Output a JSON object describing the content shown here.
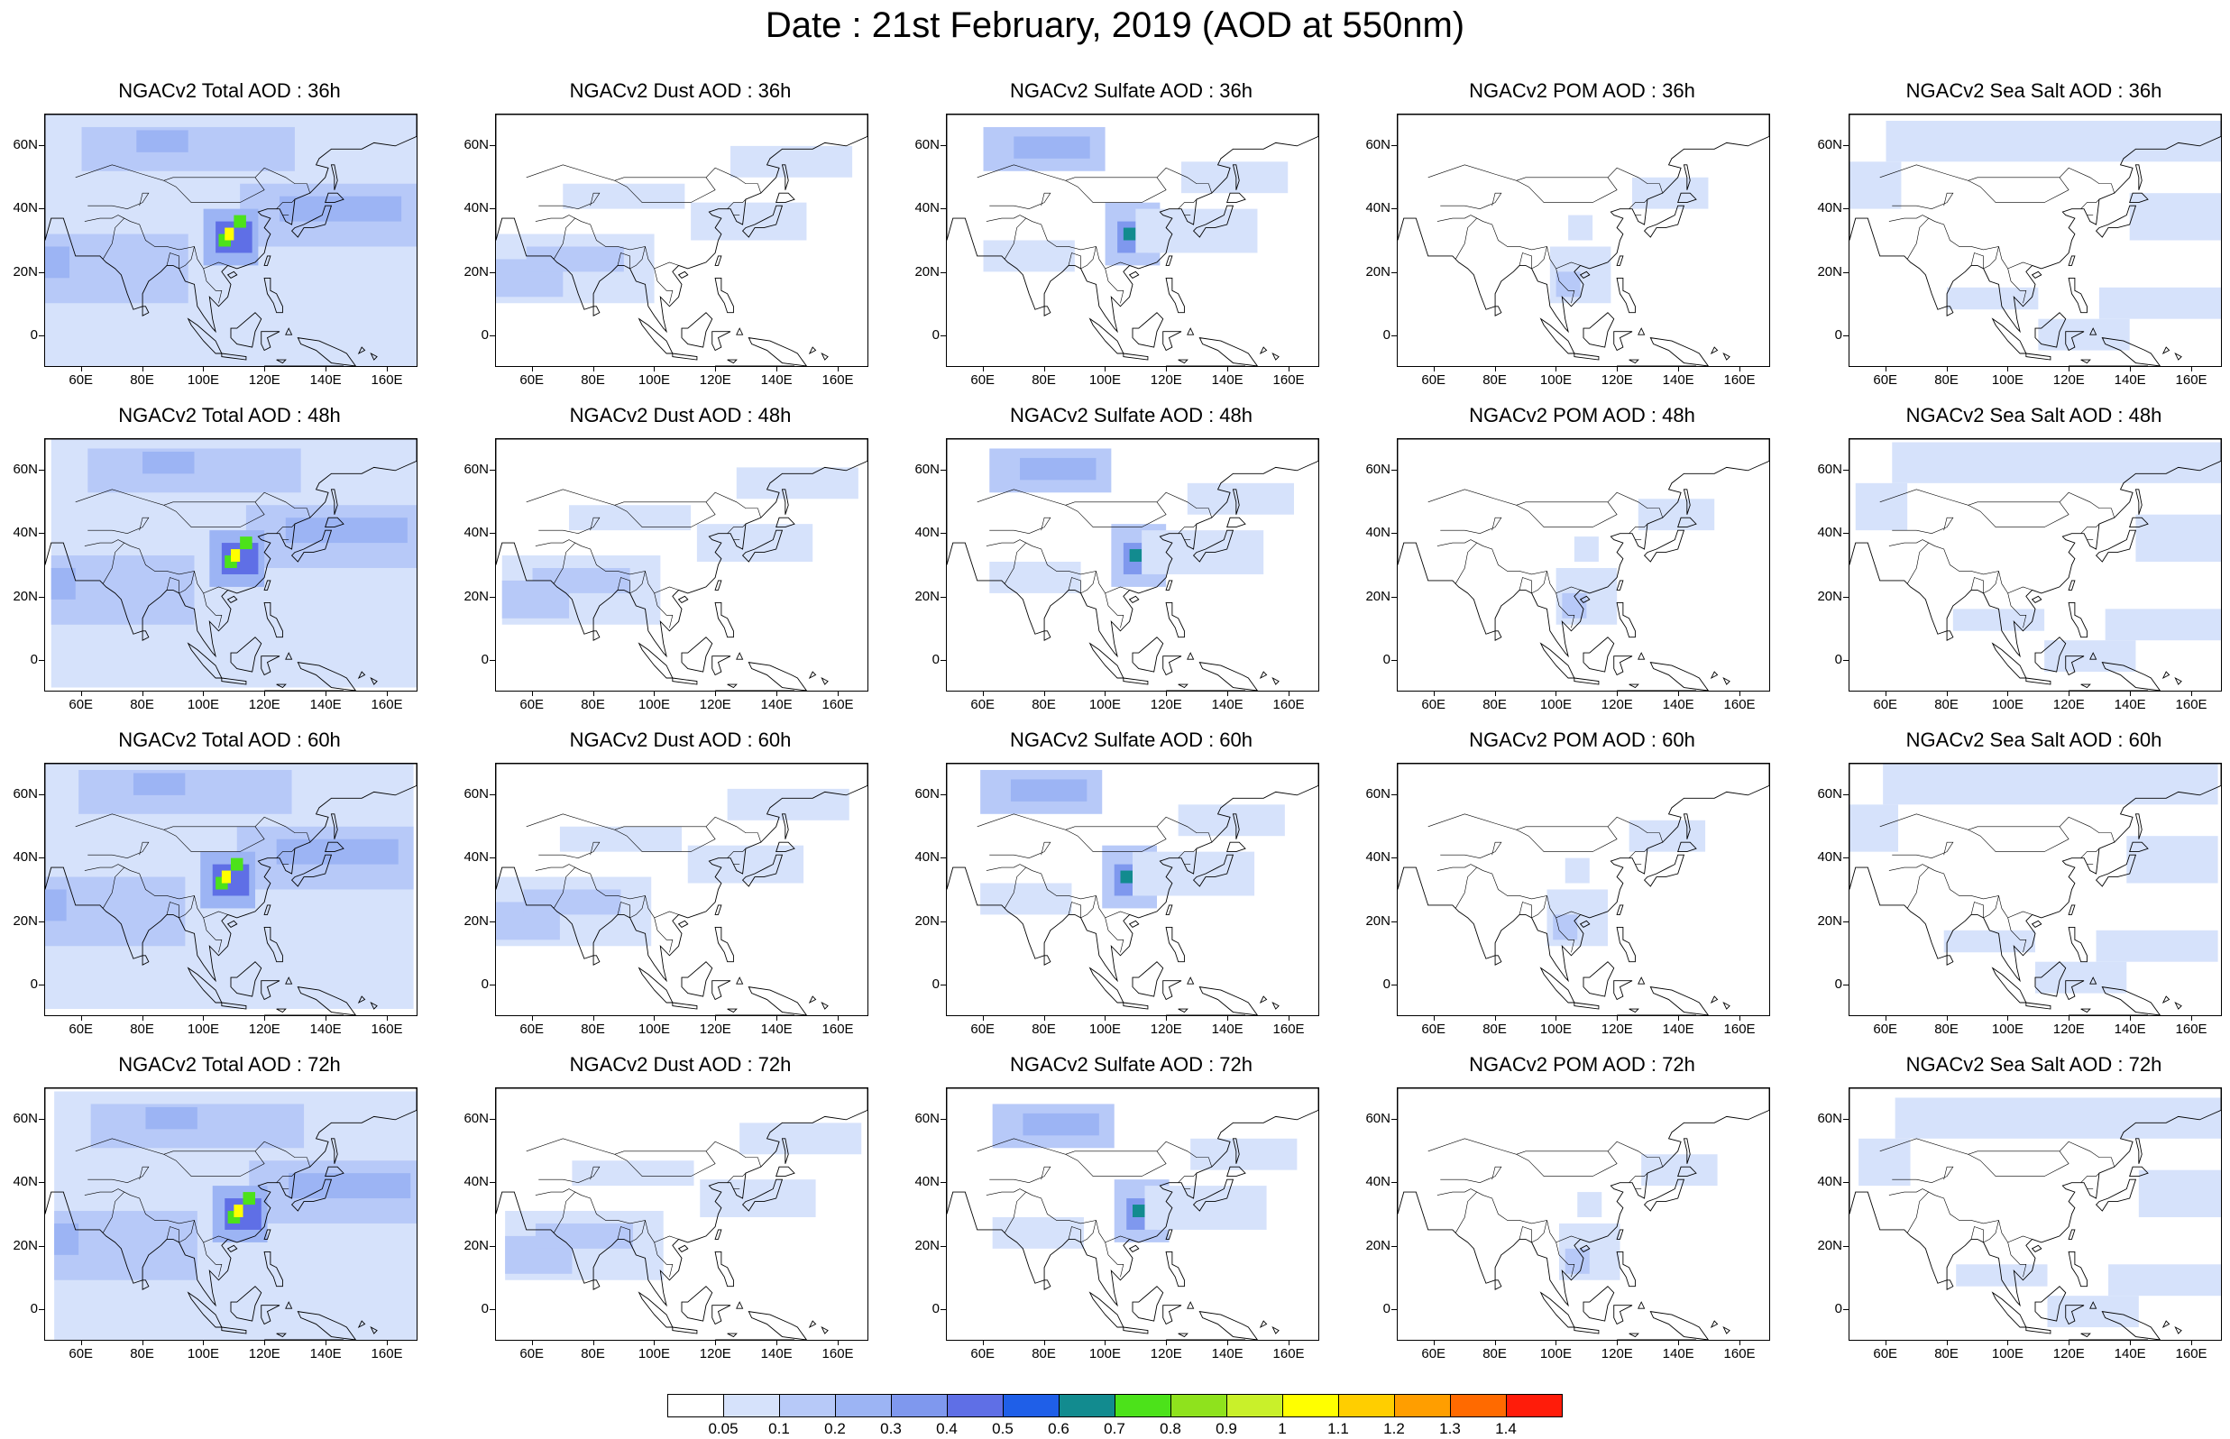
{
  "title": "Date : 21st February, 2019 (AOD at 550nm)",
  "lat_labels": [
    "60N",
    "40N",
    "20N",
    "0"
  ],
  "lat_values": [
    60,
    40,
    20,
    0
  ],
  "lon_labels": [
    "60E",
    "80E",
    "100E",
    "120E",
    "140E",
    "160E"
  ],
  "lon_values": [
    60,
    80,
    100,
    120,
    140,
    160
  ],
  "map_extent": {
    "lon": [
      48,
      170
    ],
    "lat": [
      -10,
      70
    ]
  },
  "panels": [
    {
      "title": "NGACv2 Total AOD : 36h",
      "species": "total",
      "hour": 36
    },
    {
      "title": "NGACv2 Dust AOD : 36h",
      "species": "dust",
      "hour": 36
    },
    {
      "title": "NGACv2 Sulfate AOD : 36h",
      "species": "sulfate",
      "hour": 36
    },
    {
      "title": "NGACv2 POM AOD : 36h",
      "species": "pom",
      "hour": 36
    },
    {
      "title": "NGACv2 Sea Salt AOD : 36h",
      "species": "seasalt",
      "hour": 36
    },
    {
      "title": "NGACv2 Total AOD : 48h",
      "species": "total",
      "hour": 48
    },
    {
      "title": "NGACv2 Dust AOD : 48h",
      "species": "dust",
      "hour": 48
    },
    {
      "title": "NGACv2 Sulfate AOD : 48h",
      "species": "sulfate",
      "hour": 48
    },
    {
      "title": "NGACv2 POM AOD : 48h",
      "species": "pom",
      "hour": 48
    },
    {
      "title": "NGACv2 Sea Salt AOD : 48h",
      "species": "seasalt",
      "hour": 48
    },
    {
      "title": "NGACv2 Total AOD : 60h",
      "species": "total",
      "hour": 60
    },
    {
      "title": "NGACv2 Dust AOD : 60h",
      "species": "dust",
      "hour": 60
    },
    {
      "title": "NGACv2 Sulfate AOD : 60h",
      "species": "sulfate",
      "hour": 60
    },
    {
      "title": "NGACv2 POM AOD : 60h",
      "species": "pom",
      "hour": 60
    },
    {
      "title": "NGACv2 Sea Salt AOD : 60h",
      "species": "seasalt",
      "hour": 60
    },
    {
      "title": "NGACv2 Total AOD : 72h",
      "species": "total",
      "hour": 72
    },
    {
      "title": "NGACv2 Dust AOD : 72h",
      "species": "dust",
      "hour": 72
    },
    {
      "title": "NGACv2 Sulfate AOD : 72h",
      "species": "sulfate",
      "hour": 72
    },
    {
      "title": "NGACv2 POM AOD : 72h",
      "species": "pom",
      "hour": 72
    },
    {
      "title": "NGACv2 Sea Salt  AOD : 72h",
      "species": "seasalt",
      "hour": 72
    }
  ],
  "colorbar": {
    "labels": [
      "0.05",
      "0.1",
      "0.2",
      "0.3",
      "0.4",
      "0.5",
      "0.6",
      "0.7",
      "0.8",
      "0.9",
      "1",
      "1.1",
      "1.2",
      "1.3",
      "1.4"
    ],
    "colors": [
      "#ffffff",
      "#d6e2fb",
      "#b7c9f8",
      "#9cb4f4",
      "#7f98ee",
      "#5f6fe6",
      "#1f5fe8",
      "#128b8f",
      "#4ce21a",
      "#8fe21d",
      "#c9f02a",
      "#ffff00",
      "#ffce00",
      "#ff9e00",
      "#ff6a00",
      "#ff1c0a"
    ]
  },
  "colors": {
    "pale_blue": "#d6e2fb",
    "light_blue": "#b7c9f8",
    "mid_blue": "#9cb4f4",
    "blue": "#7f98ee",
    "green": "#4ce21a",
    "yellow": "#ffff00",
    "red": "#ff1c0a",
    "coastline": "#000000"
  }
}
